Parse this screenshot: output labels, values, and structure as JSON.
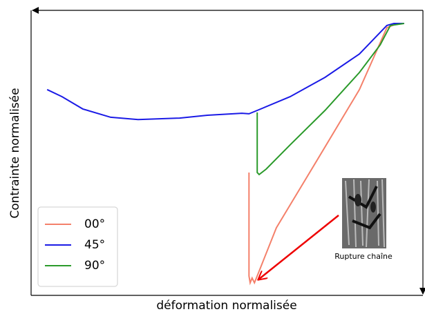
{
  "chart_data": {
    "type": "line",
    "xlabel": "déformation normalisée",
    "ylabel": "Contrainte normalisée",
    "xlim": [
      0,
      1
    ],
    "ylim": [
      0,
      1
    ],
    "legend": "lower left",
    "annotation": "Rupture chaîne",
    "series": [
      {
        "name": "00°",
        "color": "#f4806a",
        "x": [
          0.556,
          0.556,
          0.559,
          0.564,
          0.57,
          0.577,
          0.626,
          0.732,
          0.838,
          0.908,
          0.935,
          0.952
        ],
        "values": [
          0.431,
          0.068,
          0.044,
          0.061,
          0.044,
          0.068,
          0.237,
          0.479,
          0.722,
          0.939,
          0.954,
          0.954
        ]
      },
      {
        "name": "45°",
        "color": "#1a1ae6",
        "x": [
          0.041,
          0.079,
          0.132,
          0.203,
          0.273,
          0.379,
          0.45,
          0.538,
          0.556,
          0.577,
          0.661,
          0.75,
          0.838,
          0.882,
          0.908,
          0.926,
          0.952
        ],
        "values": [
          0.722,
          0.697,
          0.654,
          0.625,
          0.617,
          0.622,
          0.632,
          0.639,
          0.637,
          0.649,
          0.697,
          0.765,
          0.847,
          0.91,
          0.947,
          0.954,
          0.954
        ]
      },
      {
        "name": "90°",
        "color": "#2a9a2a",
        "x": [
          0.577,
          0.577,
          0.582,
          0.6,
          0.661,
          0.75,
          0.838,
          0.891,
          0.917,
          0.952
        ],
        "values": [
          0.642,
          0.431,
          0.424,
          0.443,
          0.528,
          0.649,
          0.782,
          0.879,
          0.947,
          0.954
        ]
      }
    ]
  }
}
